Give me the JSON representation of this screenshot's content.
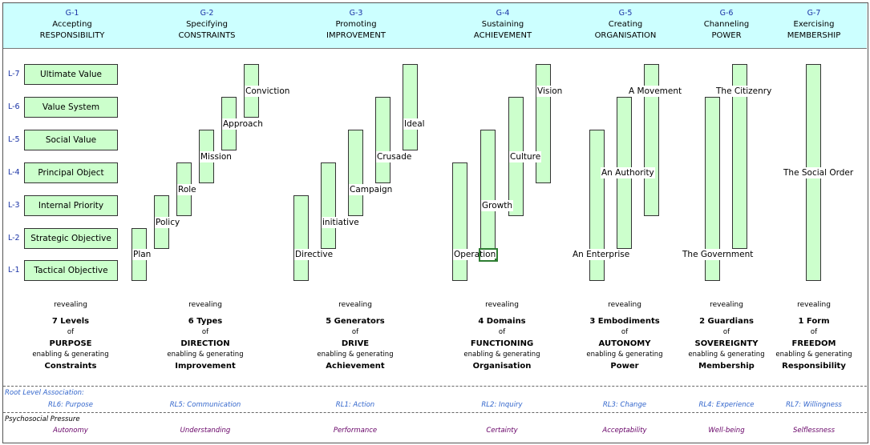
{
  "header": [
    {
      "code": "G-1",
      "l1": "Accepting",
      "l2": "RESPONSIBILITY"
    },
    {
      "code": "G-2",
      "l1": "Specifying",
      "l2": "CONSTRAINTS"
    },
    {
      "code": "G-3",
      "l1": "Promoting",
      "l2": "IMPROVEMENT"
    },
    {
      "code": "G-4",
      "l1": "Sustaining",
      "l2": "ACHIEVEMENT"
    },
    {
      "code": "G-5",
      "l1": "Creating",
      "l2": "ORGANISATION"
    },
    {
      "code": "G-6",
      "l1": "Channeling",
      "l2": "POWER"
    },
    {
      "code": "G-7",
      "l1": "Exercising",
      "l2": "MEMBERSHIP"
    }
  ],
  "levels": [
    {
      "tag": "L-7",
      "label": "Ultimate Value"
    },
    {
      "tag": "L-6",
      "label": "Value System"
    },
    {
      "tag": "L-5",
      "label": "Social Value"
    },
    {
      "tag": "L-4",
      "label": "Principal Object"
    },
    {
      "tag": "L-3",
      "label": "Internal Priority"
    },
    {
      "tag": "L-2",
      "label": "Strategic Objective"
    },
    {
      "tag": "L-1",
      "label": "Tactical Objective"
    }
  ],
  "bars": {
    "g2": [
      {
        "label": "Plan",
        "from": 1,
        "to": 2
      },
      {
        "label": "Policy",
        "from": 2,
        "to": 3
      },
      {
        "label": "Role",
        "from": 3,
        "to": 4
      },
      {
        "label": "Mission",
        "from": 4,
        "to": 5
      },
      {
        "label": "Approach",
        "from": 5,
        "to": 6
      },
      {
        "label": "Conviction",
        "from": 6,
        "to": 7
      }
    ],
    "g3": [
      {
        "label": "Directive",
        "from": 1,
        "to": 3
      },
      {
        "label": "initiative",
        "from": 2,
        "to": 4
      },
      {
        "label": "Campaign",
        "from": 3,
        "to": 5
      },
      {
        "label": "Crusade",
        "from": 4,
        "to": 6
      },
      {
        "label": "Ideal",
        "from": 5,
        "to": 7
      }
    ],
    "g4": [
      {
        "label": "Operation",
        "from": 1,
        "to": 4
      },
      {
        "label": "Growth",
        "from": 2,
        "to": 5
      },
      {
        "label": "Culture",
        "from": 3,
        "to": 6
      },
      {
        "label": "Vision",
        "from": 4,
        "to": 7
      }
    ],
    "g5": [
      {
        "label": "An Enterprise",
        "from": 1,
        "to": 5
      },
      {
        "label": "An Authority",
        "from": 2,
        "to": 6
      },
      {
        "label": "A Movement",
        "from": 3,
        "to": 7
      }
    ],
    "g6": [
      {
        "label": "The Government",
        "from": 1,
        "to": 6
      },
      {
        "label": "The Citizenry",
        "from": 2,
        "to": 7
      }
    ],
    "g7": [
      {
        "label": "The Social Order",
        "from": 1,
        "to": 7
      }
    ]
  },
  "footer": [
    {
      "revealing": "revealing",
      "count": "7 Levels",
      "of": "of",
      "main": "PURPOSE",
      "enabling": "enabling & generating",
      "last": "Constraints"
    },
    {
      "revealing": "revealing",
      "count": "6 Types",
      "of": "of",
      "main": "DIRECTION",
      "enabling": "enabling & generating",
      "last": "Improvement"
    },
    {
      "revealing": "revealing",
      "count": "5 Generators",
      "of": "of",
      "main": "DRIVE",
      "enabling": "enabling & generating",
      "last": "Achievement"
    },
    {
      "revealing": "revealing",
      "count": "4 Domains",
      "of": "of",
      "main": "FUNCTIONING",
      "enabling": "enabling & generating",
      "last": "Organisation"
    },
    {
      "revealing": "revealing",
      "count": "3 Embodiments",
      "of": "of",
      "main": "AUTONOMY",
      "enabling": "enabling & generating",
      "last": "Power"
    },
    {
      "revealing": "revealing",
      "count": "2 Guardians",
      "of": "of",
      "main": "SOVEREIGNTY",
      "enabling": "enabling & generating",
      "last": "Membership"
    },
    {
      "revealing": "revealing",
      "count": "1 Form",
      "of": "of",
      "main": "FREEDOM",
      "enabling": "enabling & generating",
      "last": "Responsibility"
    }
  ],
  "root_level": {
    "title": "Root Level Association:",
    "items": [
      "RL6: Purpose",
      "RL5: Communication",
      "RL1: Action",
      "RL2: Inquiry",
      "RL3: Change",
      "RL4: Experience",
      "RL7: Willingness"
    ],
    "color": "#3366cc"
  },
  "pressure": {
    "title": "Psychosocial Pressure",
    "items": [
      "Autonomy",
      "Understanding",
      "Performance",
      "Certainty",
      "Acceptability",
      "Well-being",
      "Selflessness"
    ],
    "color": "#660066"
  }
}
